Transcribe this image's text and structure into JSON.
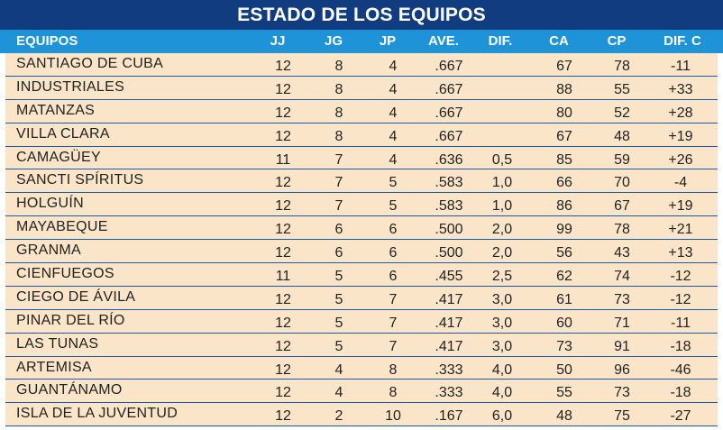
{
  "title": "ESTADO DE LOS EQUIPOS",
  "columns": [
    "EQUIPOS",
    "JJ",
    "JG",
    "JP",
    "AVE.",
    "DIF.",
    "CA",
    "CP",
    "DIF. C"
  ],
  "rows": [
    {
      "team": "SANTIAGO DE CUBA",
      "jj": "12",
      "jg": "8",
      "jp": "4",
      "ave": ".667",
      "dif": "",
      "ca": "67",
      "cp": "78",
      "difc": "-11"
    },
    {
      "team": "INDUSTRIALES",
      "jj": "12",
      "jg": "8",
      "jp": "4",
      "ave": ".667",
      "dif": "",
      "ca": "88",
      "cp": "55",
      "difc": "+33"
    },
    {
      "team": "MATANZAS",
      "jj": "12",
      "jg": "8",
      "jp": "4",
      "ave": ".667",
      "dif": "",
      "ca": "80",
      "cp": "52",
      "difc": "+28"
    },
    {
      "team": "VILLA CLARA",
      "jj": "12",
      "jg": "8",
      "jp": "4",
      "ave": ".667",
      "dif": "",
      "ca": "67",
      "cp": "48",
      "difc": "+19"
    },
    {
      "team": "CAMAGÜEY",
      "jj": "11",
      "jg": "7",
      "jp": "4",
      "ave": ".636",
      "dif": "0,5",
      "ca": "85",
      "cp": "59",
      "difc": "+26"
    },
    {
      "team": "SANCTI SPÍRITUS",
      "jj": "12",
      "jg": "7",
      "jp": "5",
      "ave": ".583",
      "dif": "1,0",
      "ca": "66",
      "cp": "70",
      "difc": "-4"
    },
    {
      "team": "HOLGUÍN",
      "jj": "12",
      "jg": "7",
      "jp": "5",
      "ave": ".583",
      "dif": "1,0",
      "ca": "86",
      "cp": "67",
      "difc": "+19"
    },
    {
      "team": "MAYABEQUE",
      "jj": "12",
      "jg": "6",
      "jp": "6",
      "ave": ".500",
      "dif": "2,0",
      "ca": "99",
      "cp": "78",
      "difc": "+21"
    },
    {
      "team": "GRANMA",
      "jj": "12",
      "jg": "6",
      "jp": "6",
      "ave": ".500",
      "dif": "2,0",
      "ca": "56",
      "cp": "43",
      "difc": "+13"
    },
    {
      "team": "CIENFUEGOS",
      "jj": "11",
      "jg": "5",
      "jp": "6",
      "ave": ".455",
      "dif": "2,5",
      "ca": "62",
      "cp": "74",
      "difc": "-12"
    },
    {
      "team": "CIEGO DE ÁVILA",
      "jj": "12",
      "jg": "5",
      "jp": "7",
      "ave": ".417",
      "dif": "3,0",
      "ca": "61",
      "cp": "73",
      "difc": "-12"
    },
    {
      "team": "PINAR DEL RÍO",
      "jj": "12",
      "jg": "5",
      "jp": "7",
      "ave": ".417",
      "dif": "3,0",
      "ca": "60",
      "cp": "71",
      "difc": "-11"
    },
    {
      "team": "LAS TUNAS",
      "jj": "12",
      "jg": "5",
      "jp": "7",
      "ave": ".417",
      "dif": "3,0",
      "ca": "73",
      "cp": "91",
      "difc": "-18"
    },
    {
      "team": "ARTEMISA",
      "jj": "12",
      "jg": "4",
      "jp": "8",
      "ave": ".333",
      "dif": "4,0",
      "ca": "50",
      "cp": "96",
      "difc": "-46"
    },
    {
      "team": "GUANTÁNAMO",
      "jj": "12",
      "jg": "4",
      "jp": "8",
      "ave": ".333",
      "dif": "4,0",
      "ca": "55",
      "cp": "73",
      "difc": "-18"
    },
    {
      "team": "ISLA DE LA JUVENTUD",
      "jj": "12",
      "jg": "2",
      "jp": "10",
      "ave": ".167",
      "dif": "6,0",
      "ca": "48",
      "cp": "75",
      "difc": "-27"
    }
  ]
}
